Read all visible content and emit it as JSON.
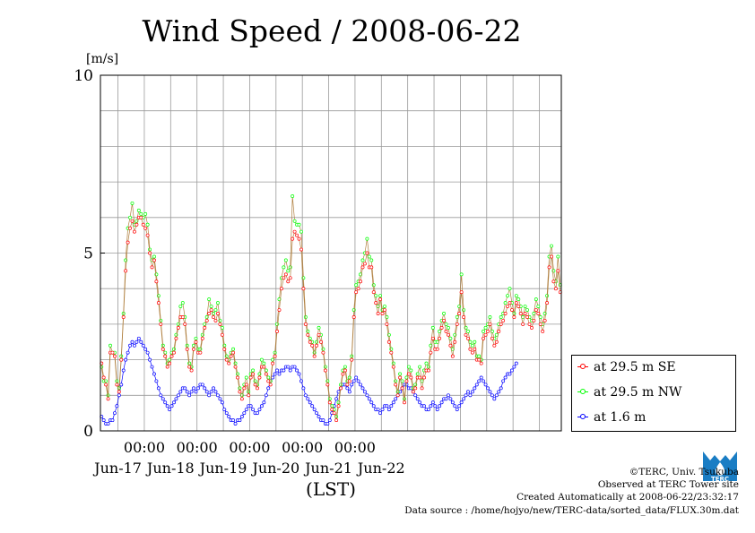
{
  "chart_data": {
    "type": "line",
    "title": "Wind Speed / 2008-06-22",
    "ylabel": "[m/s]",
    "xlabel": "(LST)",
    "ylim": [
      0,
      10
    ],
    "y_ticks": [
      0,
      5,
      10
    ],
    "x_tick_labels": [
      "00:00",
      "00:00",
      "00:00",
      "00:00",
      "00:00"
    ],
    "x_date_labels": [
      "Jun-17",
      "Jun-18",
      "Jun-19",
      "Jun-20",
      "Jun-21",
      "Jun-22"
    ],
    "x_hours_per_point": 1,
    "grid": true,
    "legend_position": "right",
    "series": [
      {
        "name": "at 29.5 m SE",
        "color": "#ff0000",
        "values": [
          1.9,
          1.5,
          1.3,
          0.9,
          2.2,
          2.2,
          2.1,
          1.3,
          1.1,
          2.0,
          3.2,
          4.5,
          5.3,
          5.7,
          5.9,
          5.6,
          5.8,
          6.0,
          6.0,
          5.8,
          5.7,
          5.5,
          5.0,
          4.6,
          4.8,
          4.2,
          3.6,
          3.0,
          2.3,
          2.1,
          1.8,
          1.9,
          2.1,
          2.2,
          2.6,
          2.9,
          3.2,
          3.2,
          3.0,
          2.3,
          1.8,
          1.7,
          2.3,
          2.5,
          2.2,
          2.2,
          2.6,
          2.9,
          3.1,
          3.3,
          3.4,
          3.2,
          3.1,
          3.3,
          3.0,
          2.7,
          2.3,
          2.0,
          1.9,
          2.1,
          2.2,
          1.8,
          1.5,
          1.1,
          0.9,
          1.2,
          1.3,
          1.0,
          1.5,
          1.6,
          1.3,
          1.2,
          1.5,
          1.8,
          1.8,
          1.6,
          1.4,
          1.3,
          1.9,
          2.1,
          2.8,
          3.4,
          4.0,
          4.3,
          4.4,
          4.2,
          4.3,
          5.4,
          5.6,
          5.5,
          5.4,
          5.1,
          4.0,
          3.0,
          2.7,
          2.5,
          2.4,
          2.1,
          2.4,
          2.7,
          2.5,
          2.2,
          1.7,
          1.3,
          0.8,
          0.6,
          0.5,
          0.3,
          0.7,
          1.2,
          1.6,
          1.7,
          1.3,
          1.4,
          2.0,
          3.2,
          3.9,
          4.0,
          4.2,
          4.6,
          4.7,
          5.0,
          4.6,
          4.6,
          3.9,
          3.6,
          3.3,
          3.7,
          3.3,
          3.4,
          3.0,
          2.5,
          2.2,
          1.8,
          1.3,
          1.0,
          1.5,
          1.2,
          0.8,
          1.4,
          1.6,
          1.5,
          1.1,
          1.2,
          1.5,
          1.5,
          1.2,
          1.5,
          1.7,
          1.7,
          2.2,
          2.6,
          2.3,
          2.3,
          2.6,
          2.9,
          3.1,
          2.8,
          2.7,
          2.4,
          2.1,
          2.5,
          3.0,
          3.3,
          3.9,
          3.2,
          2.7,
          2.6,
          2.3,
          2.2,
          2.3,
          2.0,
          2.0,
          1.9,
          2.6,
          2.7,
          2.8,
          3.0,
          2.6,
          2.4,
          2.5,
          2.8,
          3.0,
          3.1,
          3.3,
          3.5,
          3.6,
          3.4,
          3.2,
          3.6,
          3.5,
          3.3,
          3.0,
          3.3,
          3.2,
          3.0,
          2.9,
          3.1,
          3.4,
          3.3,
          3.0,
          2.8,
          3.1,
          3.6,
          4.6,
          4.9,
          4.2,
          4.0,
          4.5,
          3.9
        ]
      },
      {
        "name": "at 29.5 m NW",
        "color": "#00ff00",
        "values": [
          1.8,
          1.4,
          1.4,
          1.0,
          2.4,
          2.2,
          2.2,
          1.4,
          1.2,
          2.1,
          3.3,
          4.8,
          5.7,
          6.0,
          6.4,
          5.8,
          5.9,
          6.2,
          6.1,
          6.0,
          6.1,
          5.8,
          5.1,
          4.8,
          4.9,
          4.4,
          3.8,
          3.1,
          2.4,
          2.2,
          1.9,
          2.0,
          2.2,
          2.3,
          2.7,
          3.0,
          3.5,
          3.6,
          3.2,
          2.4,
          1.9,
          1.8,
          2.4,
          2.6,
          2.3,
          2.3,
          2.7,
          3.0,
          3.2,
          3.7,
          3.5,
          3.3,
          3.4,
          3.6,
          3.1,
          2.9,
          2.4,
          2.1,
          2.0,
          2.2,
          2.3,
          1.9,
          1.6,
          1.2,
          1.0,
          1.3,
          1.5,
          1.1,
          1.6,
          1.7,
          1.4,
          1.3,
          1.6,
          2.0,
          1.9,
          1.7,
          1.5,
          1.4,
          2.0,
          2.2,
          3.0,
          3.7,
          4.3,
          4.6,
          4.8,
          4.5,
          4.6,
          6.6,
          5.9,
          5.8,
          5.8,
          5.6,
          4.3,
          3.2,
          2.8,
          2.6,
          2.5,
          2.2,
          2.5,
          2.9,
          2.7,
          2.3,
          1.8,
          1.4,
          0.9,
          0.7,
          0.6,
          0.4,
          0.8,
          1.3,
          1.7,
          1.8,
          1.4,
          1.5,
          2.1,
          3.4,
          4.1,
          4.2,
          4.4,
          4.8,
          5.0,
          5.4,
          4.9,
          4.8,
          4.1,
          3.8,
          3.5,
          3.8,
          3.4,
          3.5,
          3.2,
          2.7,
          2.3,
          1.9,
          1.4,
          1.1,
          1.6,
          1.4,
          0.9,
          1.5,
          1.8,
          1.7,
          1.2,
          1.3,
          1.6,
          1.8,
          1.4,
          1.7,
          1.9,
          1.8,
          2.4,
          2.9,
          2.5,
          2.5,
          2.8,
          3.1,
          3.3,
          3.0,
          2.9,
          2.6,
          2.3,
          2.7,
          3.2,
          3.5,
          4.4,
          3.4,
          2.9,
          2.8,
          2.5,
          2.4,
          2.5,
          2.1,
          2.1,
          2.0,
          2.8,
          2.9,
          3.0,
          3.2,
          2.8,
          2.6,
          2.7,
          3.0,
          3.2,
          3.3,
          3.6,
          3.8,
          4.0,
          3.6,
          3.3,
          3.8,
          3.7,
          3.5,
          3.2,
          3.5,
          3.4,
          3.2,
          3.1,
          3.3,
          3.7,
          3.5,
          3.2,
          3.0,
          3.3,
          3.8,
          4.9,
          5.2,
          4.5,
          4.2,
          4.9,
          4.1
        ]
      },
      {
        "name": "at 1.6 m",
        "color": "#0000ff",
        "values": [
          0.4,
          0.3,
          0.2,
          0.2,
          0.3,
          0.3,
          0.5,
          0.7,
          1.0,
          1.3,
          1.7,
          2.0,
          2.2,
          2.4,
          2.5,
          2.4,
          2.5,
          2.6,
          2.5,
          2.4,
          2.3,
          2.2,
          2.0,
          1.8,
          1.6,
          1.4,
          1.2,
          1.0,
          0.9,
          0.8,
          0.7,
          0.6,
          0.7,
          0.8,
          0.9,
          1.0,
          1.1,
          1.2,
          1.2,
          1.1,
          1.0,
          1.1,
          1.2,
          1.1,
          1.2,
          1.3,
          1.3,
          1.2,
          1.1,
          1.0,
          1.1,
          1.2,
          1.1,
          1.0,
          0.9,
          0.8,
          0.6,
          0.5,
          0.4,
          0.3,
          0.3,
          0.2,
          0.3,
          0.3,
          0.4,
          0.5,
          0.6,
          0.7,
          0.7,
          0.6,
          0.5,
          0.5,
          0.6,
          0.7,
          0.8,
          1.0,
          1.2,
          1.4,
          1.5,
          1.6,
          1.7,
          1.6,
          1.7,
          1.7,
          1.8,
          1.8,
          1.7,
          1.8,
          1.8,
          1.7,
          1.6,
          1.4,
          1.2,
          1.0,
          0.9,
          0.8,
          0.7,
          0.6,
          0.5,
          0.4,
          0.3,
          0.3,
          0.2,
          0.2,
          0.3,
          0.5,
          0.7,
          0.9,
          1.1,
          1.2,
          1.3,
          1.3,
          1.2,
          1.1,
          1.3,
          1.4,
          1.5,
          1.4,
          1.3,
          1.2,
          1.1,
          1.0,
          0.9,
          0.8,
          0.7,
          0.6,
          0.6,
          0.5,
          0.6,
          0.7,
          0.7,
          0.6,
          0.7,
          0.8,
          0.9,
          1.0,
          1.1,
          1.2,
          1.3,
          1.3,
          1.2,
          1.2,
          1.1,
          1.0,
          0.9,
          0.8,
          0.7,
          0.7,
          0.6,
          0.6,
          0.7,
          0.8,
          0.7,
          0.6,
          0.7,
          0.8,
          0.9,
          0.9,
          1.0,
          0.9,
          0.8,
          0.7,
          0.6,
          0.7,
          0.8,
          0.9,
          1.0,
          1.1,
          1.0,
          1.1,
          1.2,
          1.3,
          1.4,
          1.5,
          1.4,
          1.3,
          1.2,
          1.1,
          1.0,
          0.9,
          1.0,
          1.1,
          1.2,
          1.4,
          1.5,
          1.6,
          1.6,
          1.7,
          1.8,
          1.9
        ]
      }
    ]
  },
  "footer": {
    "credits": [
      "©TERC, Univ. Tsukuba",
      "Observed at TERC Tower site",
      "Created Automatically at 2008-06-22/23:32:17",
      "Data source : /home/hojyo/new/TERC-data/sorted_data/FLUX.30m.dat"
    ],
    "logo_text": "TERC",
    "logo_color": "#1a7dc4"
  }
}
